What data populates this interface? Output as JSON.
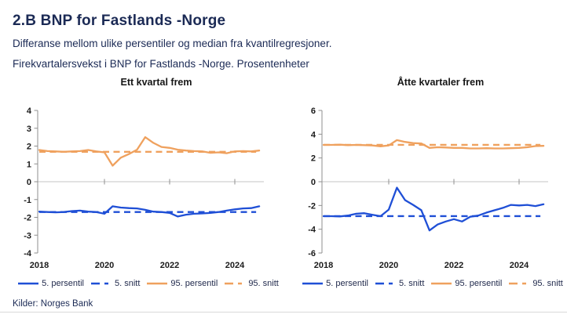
{
  "header": {
    "title": "2.B BNP for Fastlands -Norge",
    "subtitle1": "Differanse mellom ulike persentiler og median fra kvantilregresjoner.",
    "subtitle2": "Firekvartalersvekst i BNP for Fastlands -Norge. Prosentenheter"
  },
  "source": "Kilder: Norges Bank",
  "colors": {
    "accent_blue": "#1f4fd6",
    "accent_orange": "#efa15e",
    "navy_text": "#1b2a55",
    "axis_gray": "#8f8f8f",
    "zero_line_gray": "#c6c6c6"
  },
  "chart_data": [
    {
      "type": "line",
      "title": "Ett kvartal frem",
      "xlabel": "",
      "ylabel": "",
      "ylim": [
        -4,
        4
      ],
      "yticks": [
        -4,
        -3,
        -2,
        -1,
        0,
        1,
        2,
        3,
        4
      ],
      "xticks": [
        2018,
        2020,
        2022,
        2024
      ],
      "grid": "zero-line-only",
      "legend_position": "bottom",
      "x": [
        2018,
        2018.25,
        2018.5,
        2018.75,
        2019,
        2019.25,
        2019.5,
        2019.75,
        2020,
        2020.25,
        2020.5,
        2020.75,
        2021,
        2021.25,
        2021.5,
        2021.75,
        2022,
        2022.25,
        2022.5,
        2022.75,
        2023,
        2023.25,
        2023.5,
        2023.75,
        2024,
        2024.25,
        2024.5,
        2024.75
      ],
      "series": [
        {
          "name": "5. persentil",
          "color": "#1f4fd6",
          "style": "solid",
          "values": [
            -1.68,
            -1.7,
            -1.72,
            -1.7,
            -1.65,
            -1.62,
            -1.68,
            -1.7,
            -1.8,
            -1.38,
            -1.45,
            -1.48,
            -1.5,
            -1.58,
            -1.68,
            -1.7,
            -1.75,
            -1.95,
            -1.85,
            -1.8,
            -1.78,
            -1.75,
            -1.7,
            -1.62,
            -1.55,
            -1.5,
            -1.48,
            -1.38
          ]
        },
        {
          "name": "5. snitt",
          "color": "#1f4fd6",
          "style": "dashed",
          "constant": -1.7
        },
        {
          "name": "95. persentil",
          "color": "#efa15e",
          "style": "solid",
          "values": [
            1.78,
            1.72,
            1.7,
            1.68,
            1.7,
            1.72,
            1.78,
            1.7,
            1.65,
            0.9,
            1.35,
            1.55,
            1.8,
            2.5,
            2.18,
            1.95,
            1.9,
            1.8,
            1.75,
            1.72,
            1.7,
            1.62,
            1.65,
            1.6,
            1.7,
            1.72,
            1.7,
            1.75
          ]
        },
        {
          "name": "95. snitt",
          "color": "#efa15e",
          "style": "dashed",
          "constant": 1.68
        }
      ]
    },
    {
      "type": "line",
      "title": "Åtte kvartaler frem",
      "xlabel": "",
      "ylabel": "",
      "ylim": [
        -6,
        6
      ],
      "yticks": [
        -6,
        -4,
        -2,
        0,
        2,
        4,
        6
      ],
      "xticks": [
        2018,
        2020,
        2022,
        2024
      ],
      "grid": "zero-line-only",
      "legend_position": "bottom",
      "x": [
        2018,
        2018.25,
        2018.5,
        2018.75,
        2019,
        2019.25,
        2019.5,
        2019.75,
        2020,
        2020.25,
        2020.5,
        2020.75,
        2021,
        2021.25,
        2021.5,
        2021.75,
        2022,
        2022.25,
        2022.5,
        2022.75,
        2023,
        2023.25,
        2023.5,
        2023.75,
        2024,
        2024.25,
        2024.5,
        2024.75
      ],
      "series": [
        {
          "name": "5. persentil",
          "color": "#1f4fd6",
          "style": "solid",
          "values": [
            -2.9,
            -2.9,
            -2.92,
            -2.85,
            -2.7,
            -2.65,
            -2.78,
            -2.9,
            -2.35,
            -0.5,
            -1.55,
            -1.95,
            -2.4,
            -4.1,
            -3.6,
            -3.35,
            -3.15,
            -3.35,
            -2.95,
            -2.85,
            -2.6,
            -2.4,
            -2.2,
            -1.95,
            -2.0,
            -1.95,
            -2.05,
            -1.9
          ]
        },
        {
          "name": "5. snitt",
          "color": "#1f4fd6",
          "style": "dashed",
          "constant": -2.9
        },
        {
          "name": "95. persentil",
          "color": "#efa15e",
          "style": "solid",
          "values": [
            3.1,
            3.1,
            3.12,
            3.08,
            3.1,
            3.08,
            3.05,
            2.98,
            3.05,
            3.5,
            3.35,
            3.25,
            3.22,
            2.85,
            2.9,
            2.88,
            2.85,
            2.85,
            2.8,
            2.8,
            2.82,
            2.8,
            2.8,
            2.82,
            2.85,
            2.9,
            3.0,
            3.02
          ]
        },
        {
          "name": "95. snitt",
          "color": "#efa15e",
          "style": "dashed",
          "constant": 3.1
        }
      ]
    }
  ]
}
